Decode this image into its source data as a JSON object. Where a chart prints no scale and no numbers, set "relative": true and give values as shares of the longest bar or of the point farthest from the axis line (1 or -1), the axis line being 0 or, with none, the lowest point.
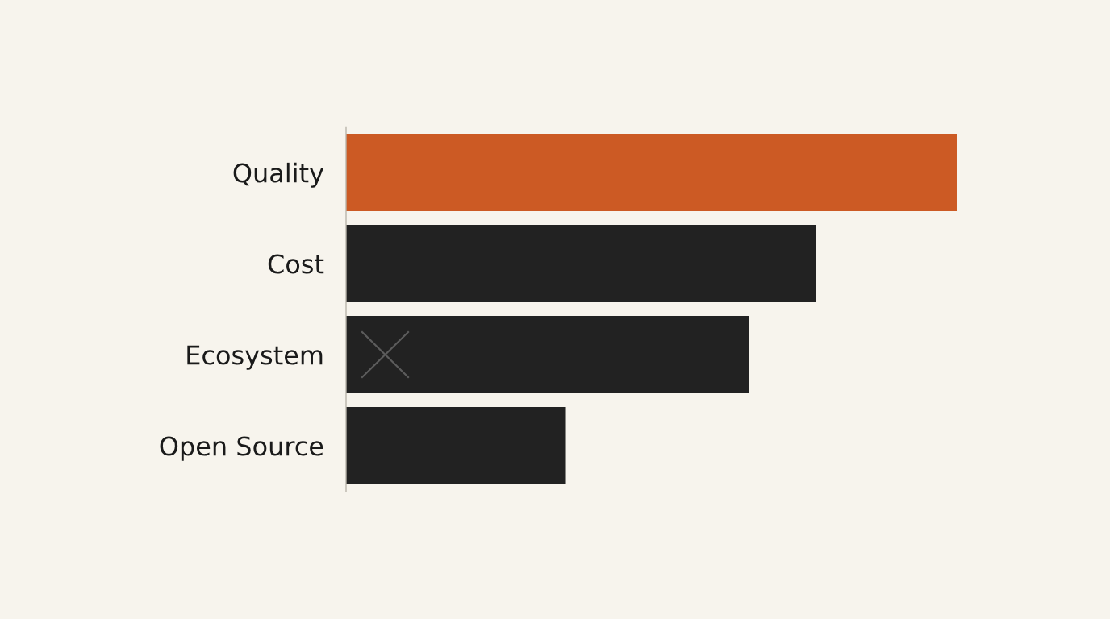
{
  "chart_data": {
    "type": "bar",
    "orientation": "horizontal",
    "relative": true,
    "categories": [
      "Quality",
      "Cost",
      "Ecosystem",
      "Open Source"
    ],
    "values": [
      1,
      0.77,
      0.66,
      0.36
    ],
    "colors": [
      "#cc5a24",
      "#222222",
      "#222222",
      "#222222"
    ],
    "tick_labels": "y"
  }
}
